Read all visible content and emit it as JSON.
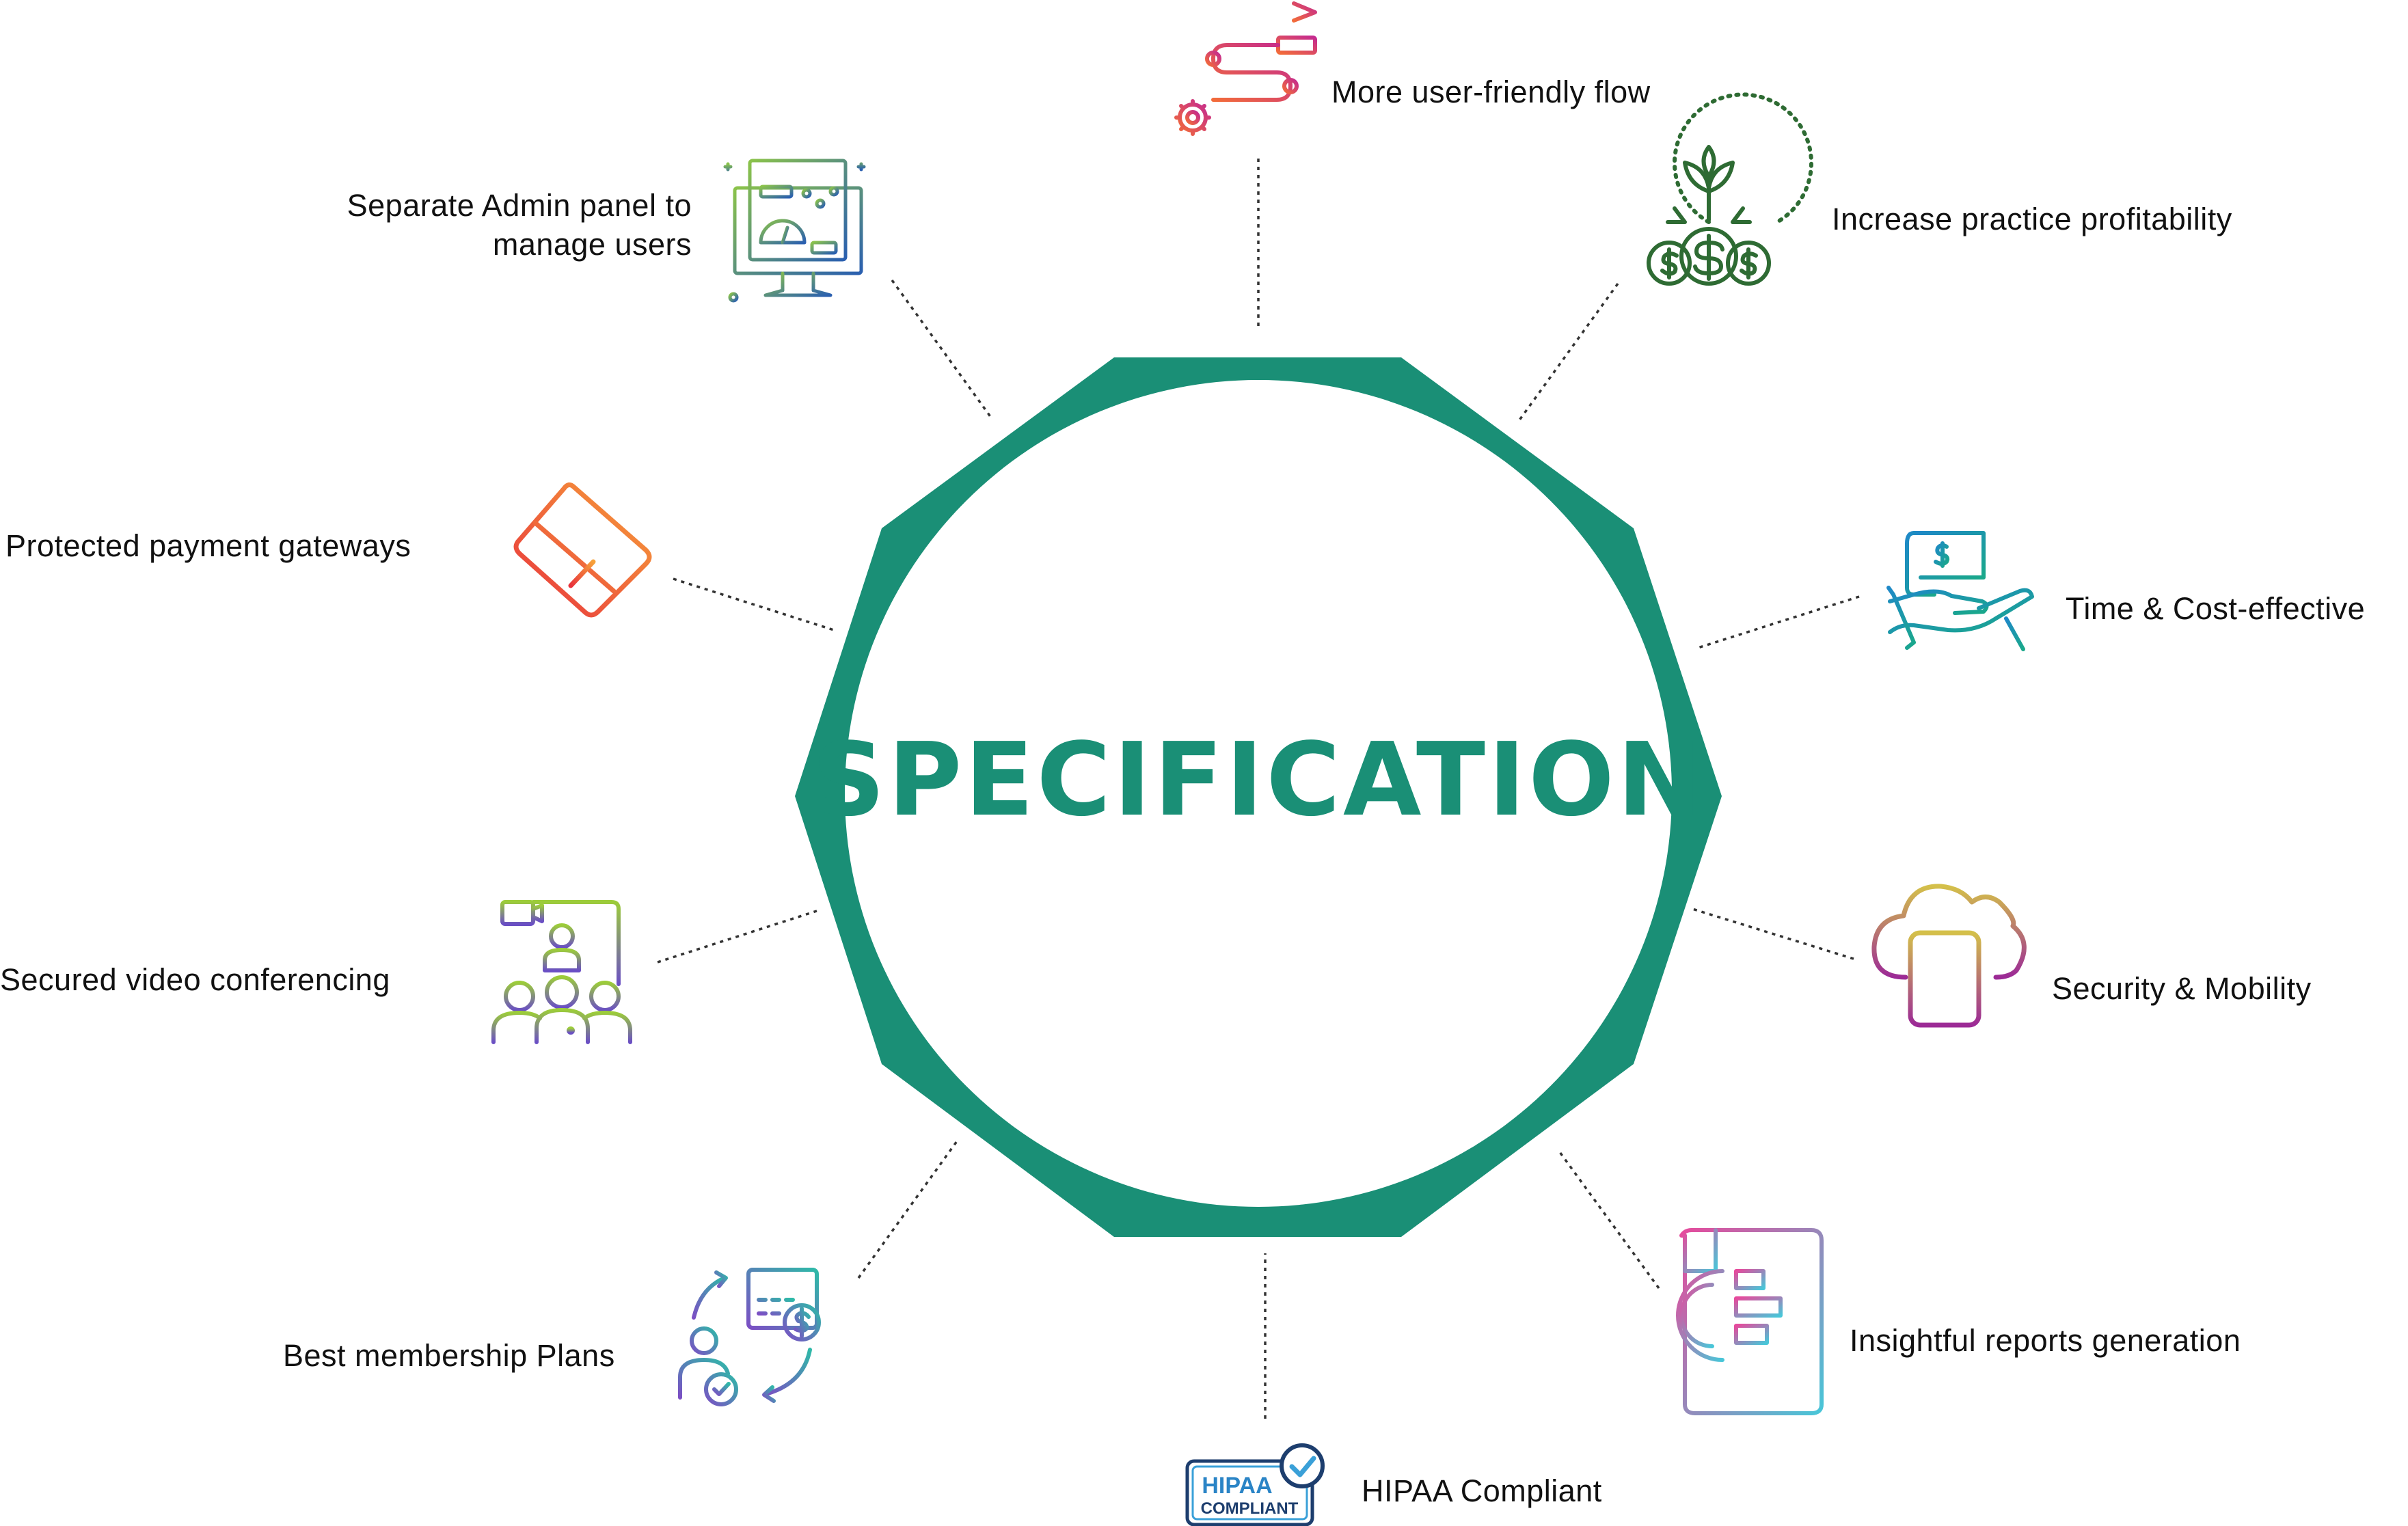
{
  "title": "SPECIFICATION",
  "colors": {
    "ring": "#1a8f76",
    "title": "#1a8f76",
    "connector": "#333333",
    "text": "#111111"
  },
  "features": [
    {
      "id": "user-friendly-flow",
      "label": "More user-friendly flow",
      "icon": "route-flag-gear-icon"
    },
    {
      "id": "practice-profitability",
      "label": "Increase practice profitability",
      "icon": "money-bags-plant-icon"
    },
    {
      "id": "time-cost-effective",
      "label": "Time & Cost-effective",
      "icon": "hand-holding-money-icon"
    },
    {
      "id": "security-mobility",
      "label": "Security & Mobility",
      "icon": "cloud-mobile-icon"
    },
    {
      "id": "reports-generation",
      "label": "Insightful reports generation",
      "icon": "report-chart-document-icon"
    },
    {
      "id": "hipaa-compliant",
      "label": "HIPAA Compliant",
      "icon": "hipaa-compliant-badge-icon",
      "badge_line1": "HIPAA",
      "badge_line2": "COMPLIANT"
    },
    {
      "id": "membership-plans",
      "label": "Best membership Plans",
      "icon": "membership-cycle-icon"
    },
    {
      "id": "video-conferencing",
      "label": "Secured video conferencing",
      "icon": "video-conference-icon"
    },
    {
      "id": "payment-gateways",
      "label": "Protected payment gateways",
      "icon": "payment-card-icon"
    },
    {
      "id": "admin-panel",
      "label_line1": "Separate Admin panel to",
      "label_line2": "manage users",
      "icon": "admin-dashboard-icon"
    }
  ]
}
